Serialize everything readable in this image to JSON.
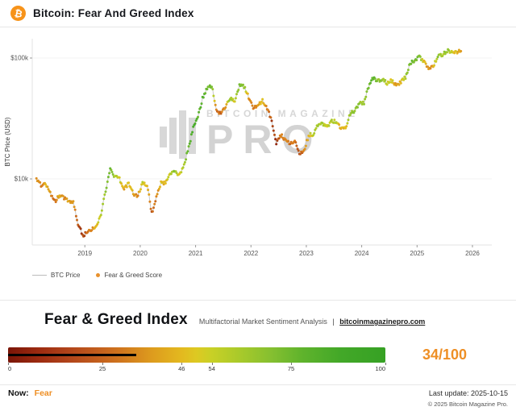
{
  "header": {
    "logo_symbol": "₿",
    "title": "Bitcoin: Fear And Greed Index"
  },
  "chart": {
    "y_axis_label": "BTC Price (USD)",
    "watermark_line1": "BITCOIN MAGAZINE",
    "watermark_line2": "PRO",
    "legend": [
      {
        "label": "BTC Price"
      },
      {
        "label": "Fear & Greed Score"
      }
    ]
  },
  "chart_data": {
    "type": "scatter",
    "title": "Bitcoin: Fear And Greed Index",
    "ylabel": "BTC Price (USD)",
    "y_scale": "log",
    "xlim": [
      2018.05,
      2026.35
    ],
    "ylim": [
      2800,
      140000
    ],
    "x_tick_values": [
      2019,
      2020,
      2021,
      2022,
      2023,
      2024,
      2025,
      2026
    ],
    "x_tick_labels": [
      "2019",
      "2020",
      "2021",
      "2022",
      "2023",
      "2024",
      "2025",
      "2026"
    ],
    "y_tick_values": [
      100000,
      10000
    ],
    "y_tick_labels": [
      "$100k",
      "$10k"
    ],
    "dates": [
      "2018-02",
      "2018-03",
      "2018-04",
      "2018-05",
      "2018-06",
      "2018-07",
      "2018-08",
      "2018-09",
      "2018-10",
      "2018-11",
      "2018-12",
      "2019-01",
      "2019-02",
      "2019-03",
      "2019-04",
      "2019-05",
      "2019-06",
      "2019-07",
      "2019-08",
      "2019-09",
      "2019-10",
      "2019-11",
      "2019-12",
      "2020-01",
      "2020-02",
      "2020-03",
      "2020-04",
      "2020-05",
      "2020-06",
      "2020-07",
      "2020-08",
      "2020-09",
      "2020-10",
      "2020-11",
      "2020-12",
      "2021-01",
      "2021-02",
      "2021-03",
      "2021-04",
      "2021-05",
      "2021-06",
      "2021-07",
      "2021-08",
      "2021-09",
      "2021-10",
      "2021-11",
      "2021-12",
      "2022-01",
      "2022-02",
      "2022-03",
      "2022-04",
      "2022-05",
      "2022-06",
      "2022-07",
      "2022-08",
      "2022-09",
      "2022-10",
      "2022-11",
      "2022-12",
      "2023-01",
      "2023-02",
      "2023-03",
      "2023-04",
      "2023-05",
      "2023-06",
      "2023-07",
      "2023-08",
      "2023-09",
      "2023-10",
      "2023-11",
      "2023-12",
      "2024-01",
      "2024-02",
      "2024-03",
      "2024-04",
      "2024-05",
      "2024-06",
      "2024-07",
      "2024-08",
      "2024-09",
      "2024-10",
      "2024-11",
      "2024-12",
      "2025-01",
      "2025-02",
      "2025-03",
      "2025-04",
      "2025-05",
      "2025-06",
      "2025-07",
      "2025-08",
      "2025-09",
      "2025-10"
    ],
    "prices": [
      10000,
      8800,
      9200,
      7600,
      6500,
      7400,
      6900,
      6600,
      6400,
      4300,
      3400,
      3600,
      3800,
      4000,
      5200,
      8000,
      12000,
      10500,
      10000,
      8300,
      9200,
      7600,
      7200,
      9300,
      8900,
      5200,
      7100,
      9400,
      9200,
      11000,
      11700,
      10700,
      13000,
      18000,
      27000,
      33000,
      46000,
      57000,
      59000,
      37000,
      34000,
      40000,
      47000,
      43000,
      60000,
      58000,
      47000,
      38000,
      40000,
      45000,
      39000,
      30000,
      19500,
      23000,
      21000,
      19500,
      20500,
      16500,
      16800,
      23000,
      23500,
      28000,
      29000,
      27000,
      30400,
      29300,
      26000,
      26800,
      34000,
      37000,
      42500,
      42800,
      58000,
      69000,
      64000,
      67000,
      62000,
      65000,
      59000,
      63000,
      69000,
      90000,
      97000,
      102000,
      92000,
      83000,
      85000,
      104000,
      106000,
      115000,
      114000,
      112000,
      114000
    ],
    "scores": [
      30,
      25,
      42,
      33,
      24,
      40,
      30,
      35,
      32,
      14,
      10,
      22,
      32,
      42,
      56,
      66,
      82,
      62,
      52,
      40,
      50,
      36,
      30,
      55,
      48,
      12,
      28,
      46,
      42,
      55,
      72,
      48,
      62,
      86,
      92,
      86,
      90,
      84,
      74,
      22,
      20,
      32,
      72,
      46,
      80,
      70,
      30,
      22,
      32,
      46,
      30,
      12,
      9,
      26,
      30,
      22,
      24,
      12,
      26,
      46,
      56,
      62,
      64,
      50,
      60,
      55,
      40,
      44,
      66,
      70,
      72,
      62,
      80,
      86,
      70,
      72,
      54,
      50,
      34,
      44,
      60,
      82,
      78,
      76,
      42,
      30,
      36,
      68,
      60,
      70,
      56,
      46,
      34
    ],
    "color_stops": [
      [
        0,
        "#8a1c0d"
      ],
      [
        25,
        "#d97b1e"
      ],
      [
        46,
        "#e4c01f"
      ],
      [
        54,
        "#c2d126"
      ],
      [
        75,
        "#7fc033"
      ],
      [
        100,
        "#2fa327"
      ]
    ]
  },
  "panel": {
    "title": "Fear & Greed Index",
    "subtitle": "Multifactorial Market Sentiment Analysis",
    "separator": "|",
    "link": "bitcoinmagazinepro.com",
    "score_value": 34,
    "score_display": "34/100",
    "scale_tick_values": [
      0,
      25,
      46,
      54,
      75,
      100
    ],
    "scale_ticks": [
      "0",
      "25",
      "46",
      "54",
      "75",
      "100"
    ],
    "now_label": "Now:",
    "now_value": "Fear",
    "last_update": "Last update: 2025-10-15",
    "accent_color": "#ee8f25"
  },
  "footer": {
    "copyright": "© 2025 Bitcoin Magazine Pro."
  }
}
